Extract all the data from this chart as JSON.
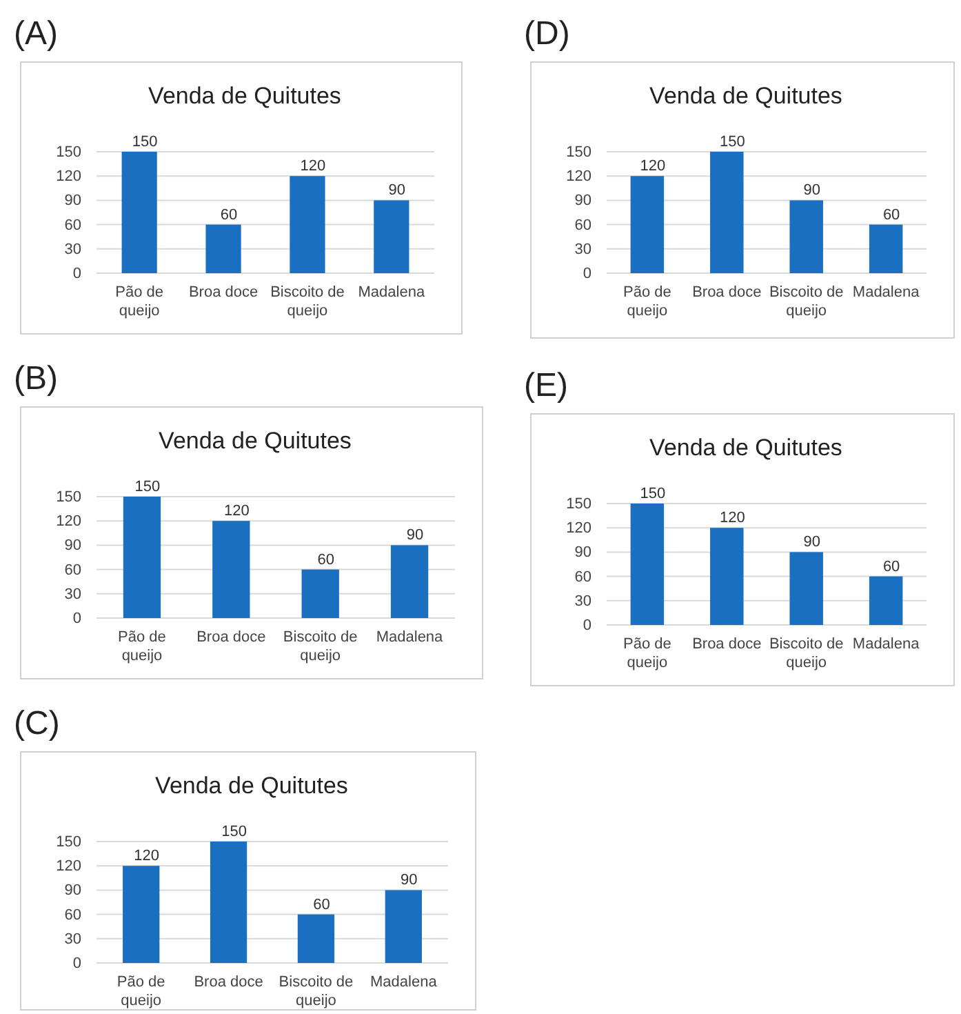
{
  "chart_data": [
    {
      "type": "bar",
      "title": "Venda de Quitutes",
      "annotations": [
        "(A)"
      ],
      "categories": [
        "Pão de queijo",
        "Broa doce",
        "Biscoito de queijo",
        "Madalena"
      ],
      "values": [
        150,
        60,
        120,
        90
      ],
      "color": "#1a6fc0",
      "ylim": [
        0,
        150
      ],
      "yticks": [
        0,
        30,
        60,
        90,
        120,
        150
      ],
      "grid": "y",
      "data_labels": true
    },
    {
      "type": "bar",
      "title": "Venda de Quitutes",
      "annotations": [
        "(D)"
      ],
      "categories": [
        "Pão de queijo",
        "Broa doce",
        "Biscoito de queijo",
        "Madalena"
      ],
      "values": [
        120,
        150,
        90,
        60
      ],
      "color": "#1a6fc0",
      "ylim": [
        0,
        150
      ],
      "yticks": [
        0,
        30,
        60,
        90,
        120,
        150
      ],
      "grid": "y",
      "data_labels": true
    },
    {
      "type": "bar",
      "title": "Venda de Quitutes",
      "annotations": [
        "(B)"
      ],
      "categories": [
        "Pão de queijo",
        "Broa doce",
        "Biscoito de queijo",
        "Madalena"
      ],
      "values": [
        150,
        120,
        60,
        90
      ],
      "color": "#1a6fc0",
      "ylim": [
        0,
        150
      ],
      "yticks": [
        0,
        30,
        60,
        90,
        120,
        150
      ],
      "grid": "y",
      "data_labels": true
    },
    {
      "type": "bar",
      "title": "Venda de Quitutes",
      "annotations": [
        "(E)"
      ],
      "categories": [
        "Pão de queijo",
        "Broa doce",
        "Biscoito de queijo",
        "Madalena"
      ],
      "values": [
        150,
        120,
        90,
        60
      ],
      "color": "#1a6fc0",
      "ylim": [
        0,
        150
      ],
      "yticks": [
        0,
        30,
        60,
        90,
        120,
        150
      ],
      "grid": "y",
      "data_labels": true
    },
    {
      "type": "bar",
      "title": "Venda de Quitutes",
      "annotations": [
        "(C)"
      ],
      "categories": [
        "Pão de queijo",
        "Broa doce",
        "Biscoito de queijo",
        "Madalena"
      ],
      "values": [
        120,
        150,
        60,
        90
      ],
      "color": "#1a6fc0",
      "ylim": [
        0,
        150
      ],
      "yticks": [
        0,
        30,
        60,
        90,
        120,
        150
      ],
      "grid": "y",
      "data_labels": true
    }
  ]
}
